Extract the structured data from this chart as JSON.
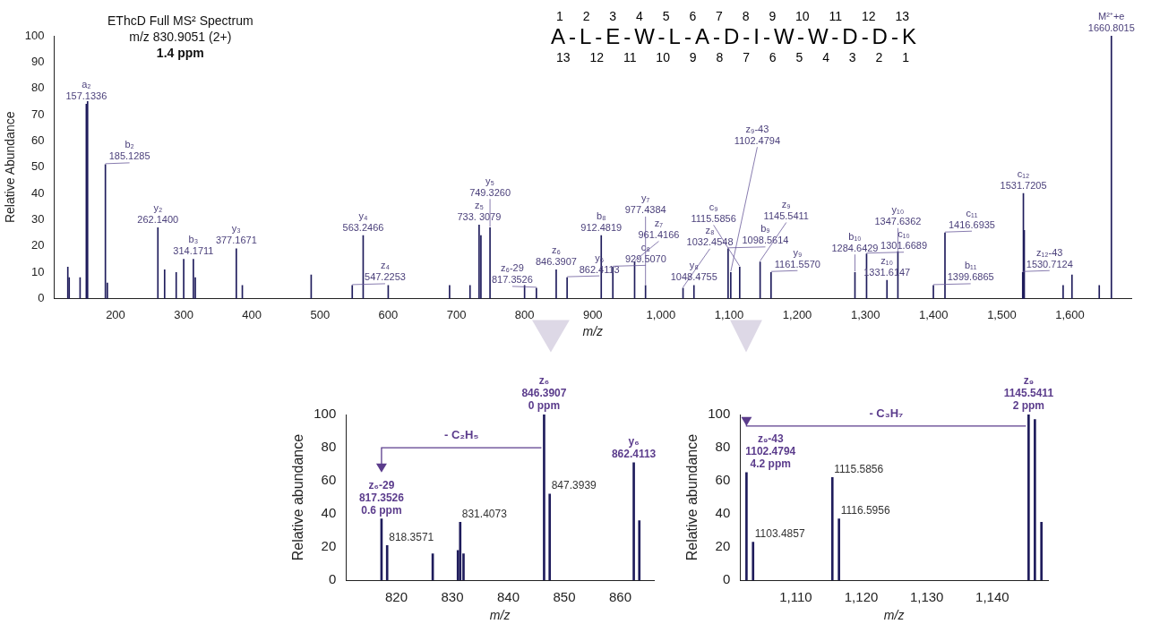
{
  "chart_data": [
    {
      "type": "bar",
      "title": "EThcD Full MS² Spectrum",
      "subtitle": "m/z 830.9051 (2+)",
      "xlabel": "m/z",
      "ylabel": "Relative Abundance",
      "color": "#1f1c5c",
      "x": [
        130,
        132,
        148,
        157.1336,
        159,
        185.1285,
        188,
        262.14,
        272,
        289,
        300,
        314.1711,
        317,
        377.1671,
        386,
        487,
        547.2253,
        563.2466,
        600,
        690,
        720,
        733.3079,
        736,
        749.326,
        800,
        817.3526,
        846.3907,
        862.4113,
        912.4819,
        929.507,
        961.4166,
        977.4384,
        1032.4548,
        1048.4755,
        1098.5614,
        1102.4794,
        1115.5856,
        1145.5411,
        1161.557,
        1284.6429,
        1301.6689,
        1331.6147,
        1347.6362,
        1399.6865,
        1416.6935,
        1530.7124,
        1531.7205,
        1533,
        1590,
        1603,
        1643,
        1660.8015
      ],
      "values": [
        12,
        8,
        8,
        74,
        75,
        51,
        6,
        27,
        11,
        10,
        15,
        15,
        8,
        19,
        5,
        9,
        5,
        24,
        5,
        5,
        5,
        28,
        24,
        27,
        5,
        4,
        11,
        8,
        24,
        12,
        14,
        5,
        4,
        5,
        19,
        10,
        12,
        14,
        10,
        10,
        17,
        7,
        18,
        5,
        25,
        10,
        40,
        26,
        5,
        9,
        5,
        100
      ],
      "xlim": [
        110,
        1690
      ],
      "ylim": [
        0,
        100
      ],
      "xticks": [
        200,
        300,
        400,
        500,
        600,
        700,
        800,
        900,
        {
          "value": 1000,
          "label": "1,000"
        },
        {
          "value": 1100,
          "label": "1,100"
        },
        {
          "value": 1200,
          "label": "1,200"
        },
        {
          "value": 1300,
          "label": "1,300"
        },
        {
          "value": 1400,
          "label": "1,400"
        },
        {
          "value": 1500,
          "label": "1,500"
        },
        {
          "value": 1600,
          "label": "1,600"
        }
      ],
      "yticks": [
        0,
        10,
        20,
        30,
        40,
        50,
        60,
        70,
        80,
        90,
        100
      ],
      "annotations": [
        "1.4 ppm",
        "1 2 3 4 5 6 7 8 9 10 11 12 13",
        "A-L-E-W-L-A-D-I-W-W-D-D-K",
        "13 12 11 10 9 8 7 6 5 4 3 2 1",
        {
          "text": "a₂\n157.1336",
          "x": 157.1336,
          "y": 74
        },
        {
          "text": "b₂\n185.1285",
          "x": 185.1285,
          "y": 51
        },
        {
          "text": "y₂\n262.1400",
          "x": 262.14,
          "y": 27
        },
        {
          "text": "b₃\n314.1711",
          "x": 314.1711,
          "y": 15
        },
        {
          "text": "y₃\n377.1671",
          "x": 377.1671,
          "y": 19
        },
        {
          "text": "z₄\n547.2253",
          "x": 547.2253,
          "y": 5
        },
        {
          "text": "y₄\n563.2466",
          "x": 563.2466,
          "y": 24
        },
        {
          "text": "z₅\n733. 3079",
          "x": 733.3079,
          "y": 28
        },
        {
          "text": "y₅\n749.3260",
          "x": 749.326,
          "y": 27
        },
        {
          "text": "z₆-29\n817.3526",
          "x": 817.3526,
          "y": 4
        },
        {
          "text": "z₆\n846.3907",
          "x": 846.3907,
          "y": 11
        },
        {
          "text": "y₆\n862.4113",
          "x": 862.4113,
          "y": 8
        },
        {
          "text": "b₈\n912.4819",
          "x": 912.4819,
          "y": 24
        },
        {
          "text": "c₈\n929.5070",
          "x": 929.507,
          "y": 12
        },
        {
          "text": "z₇\n961.4166",
          "x": 961.4166,
          "y": 14
        },
        {
          "text": "y₇\n977.4384",
          "x": 977.4384,
          "y": 5
        },
        {
          "text": "z₈\n1032.4548",
          "x": 1032.4548,
          "y": 4
        },
        {
          "text": "y₈\n1048.4755",
          "x": 1048.4755,
          "y": 5
        },
        {
          "text": "b₉\n1098.5614",
          "x": 1098.5614,
          "y": 19
        },
        {
          "text": "z₉-43\n1102.4794",
          "x": 1102.4794,
          "y": 10
        },
        {
          "text": "c₉\n1115.5856",
          "x": 1115.5856,
          "y": 12
        },
        {
          "text": "z₉\n1145.5411",
          "x": 1145.5411,
          "y": 14
        },
        {
          "text": "y₉\n1161.5570",
          "x": 1161.557,
          "y": 10
        },
        {
          "text": "b₁₀\n1284.6429",
          "x": 1284.6429,
          "y": 10
        },
        {
          "text": "c₁₀\n1301.6689",
          "x": 1301.6689,
          "y": 17
        },
        {
          "text": "z₁₀\n1331.6147",
          "x": 1331.6147,
          "y": 7
        },
        {
          "text": "y₁₀\n1347.6362",
          "x": 1347.6362,
          "y": 18
        },
        {
          "text": "b₁₁\n1399.6865",
          "x": 1399.6865,
          "y": 5
        },
        {
          "text": "c₁₁\n1416.6935",
          "x": 1416.6935,
          "y": 25
        },
        {
          "text": "z₁₂-43\n1530.7124",
          "x": 1530.7124,
          "y": 10
        },
        {
          "text": "c₁₂\n1531.7205",
          "x": 1531.7205,
          "y": 40
        },
        {
          "text": "M²⁺+e\n1660.8015",
          "x": 1660.8015,
          "y": 100
        }
      ]
    },
    {
      "type": "bar",
      "xlabel": "m/z",
      "ylabel": "Relative abundance",
      "color": "#1f1c5c",
      "x": [
        817.3526,
        818.3571,
        826.5,
        831.0,
        831.4073,
        832,
        846.3907,
        847.3939,
        862.4113,
        863.4
      ],
      "values": [
        37,
        21,
        16,
        18,
        35,
        16,
        100,
        52,
        71,
        36
      ],
      "xlim": [
        811,
        866
      ],
      "ylim": [
        0,
        100
      ],
      "xticks": [
        820,
        830,
        840,
        850,
        860
      ],
      "yticks": [
        0,
        20,
        40,
        60,
        80,
        100
      ],
      "annotations": [
        {
          "text": "z₆\n846.3907\n0 ppm",
          "x": 846.3907,
          "y": 100
        },
        {
          "text": "z₆-29\n817.3526\n0.6 ppm",
          "x": 817.3526,
          "y": 37
        },
        {
          "text": "y₆\n862.4113",
          "x": 862.4113,
          "y": 71
        },
        {
          "text": "847.3939",
          "x": 847.3939,
          "y": 52
        },
        {
          "text": "818.3571",
          "x": 818.3571,
          "y": 21
        },
        {
          "text": "831.4073",
          "x": 831.4073,
          "y": 35
        },
        "- C₂H₅"
      ]
    },
    {
      "type": "bar",
      "xlabel": "m/z",
      "ylabel": "Relative abundance",
      "color": "#1f1c5c",
      "x": [
        1102.4794,
        1103.4857,
        1115.5856,
        1116.5956,
        1145.5411,
        1146.5,
        1147.5
      ],
      "values": [
        65,
        23,
        62,
        37,
        100,
        97,
        35
      ],
      "xlim": [
        1101.5,
        1148.5
      ],
      "ylim": [
        0,
        100
      ],
      "xticks": [
        {
          "value": 1110,
          "label": "1,110"
        },
        {
          "value": 1120,
          "label": "1,120"
        },
        {
          "value": 1130,
          "label": "1,130"
        },
        {
          "value": 1140,
          "label": "1,140"
        }
      ],
      "yticks": [
        0,
        20,
        40,
        60,
        80,
        100
      ],
      "annotations": [
        {
          "text": "z₉\n1145.5411\n2 ppm",
          "x": 1145.5411,
          "y": 100
        },
        {
          "text": "z₉-43\n1102.4794\n4.2 ppm",
          "x": 1102.4794,
          "y": 65
        },
        {
          "text": "1103.4857",
          "x": 1103.4857,
          "y": 23
        },
        {
          "text": "1115.5856",
          "x": 1115.5856,
          "y": 62
        },
        {
          "text": "1116.5956",
          "x": 1116.5956,
          "y": 37
        },
        "- C₃H₇"
      ]
    }
  ]
}
